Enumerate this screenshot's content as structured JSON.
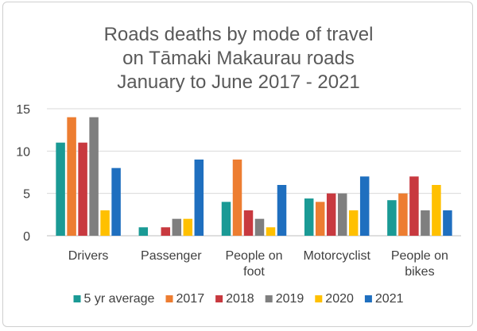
{
  "chart_data": {
    "type": "bar",
    "title_lines": [
      "Roads deaths by mode of travel",
      "on Tāmaki Makaurau roads",
      "January to June 2017 - 2021"
    ],
    "categories": [
      [
        "Drivers"
      ],
      [
        "Passenger"
      ],
      [
        "People on",
        "foot"
      ],
      [
        "Motorcyclist"
      ],
      [
        "People on",
        "bikes"
      ]
    ],
    "series": [
      {
        "name": "5 yr average",
        "color": "#1a9a95",
        "values": [
          11,
          1,
          4,
          4.4,
          4.2
        ]
      },
      {
        "name": "2017",
        "color": "#ed7d31",
        "values": [
          14,
          0,
          9,
          4,
          5
        ]
      },
      {
        "name": "2018",
        "color": "#c8393f",
        "values": [
          11,
          1,
          3,
          5,
          7
        ]
      },
      {
        "name": "2019",
        "color": "#7f7f7f",
        "values": [
          14,
          2,
          2,
          5,
          3
        ]
      },
      {
        "name": "2020",
        "color": "#ffc000",
        "values": [
          3,
          2,
          1,
          3,
          6
        ]
      },
      {
        "name": "2021",
        "color": "#1f6fbf",
        "values": [
          8,
          9,
          6,
          7,
          3
        ]
      }
    ],
    "yticks": [
      0,
      5,
      10,
      15
    ],
    "ylim": [
      0,
      15
    ],
    "grid": true,
    "legend_position": "bottom"
  }
}
